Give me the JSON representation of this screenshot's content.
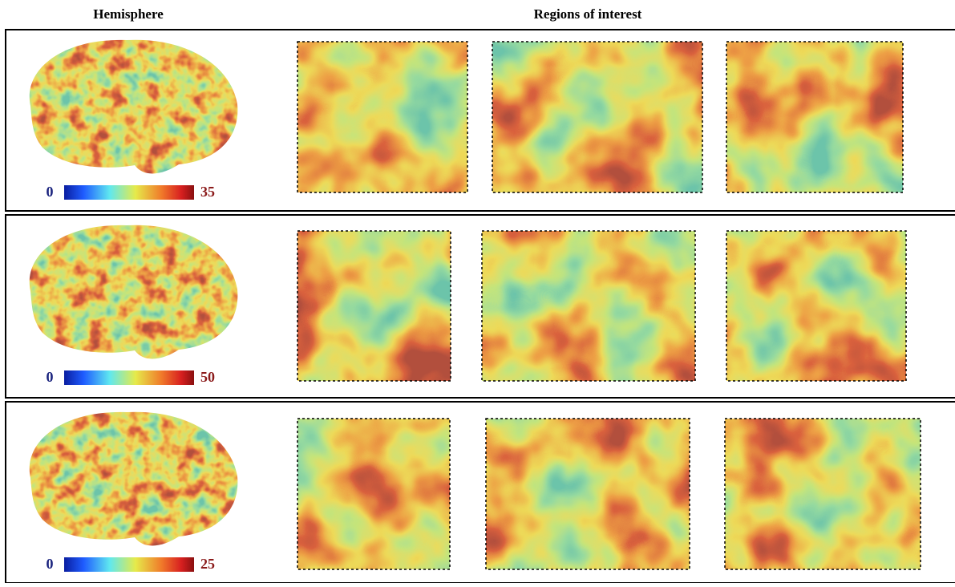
{
  "header": {
    "hemisphere": "Hemisphere",
    "regions": "Regions of interest"
  },
  "rows": [
    {
      "colorbar": {
        "min": 0,
        "max": 35
      }
    },
    {
      "colorbar": {
        "min": 0,
        "max": 50
      }
    },
    {
      "colorbar": {
        "min": 0,
        "max": 25
      }
    }
  ]
}
